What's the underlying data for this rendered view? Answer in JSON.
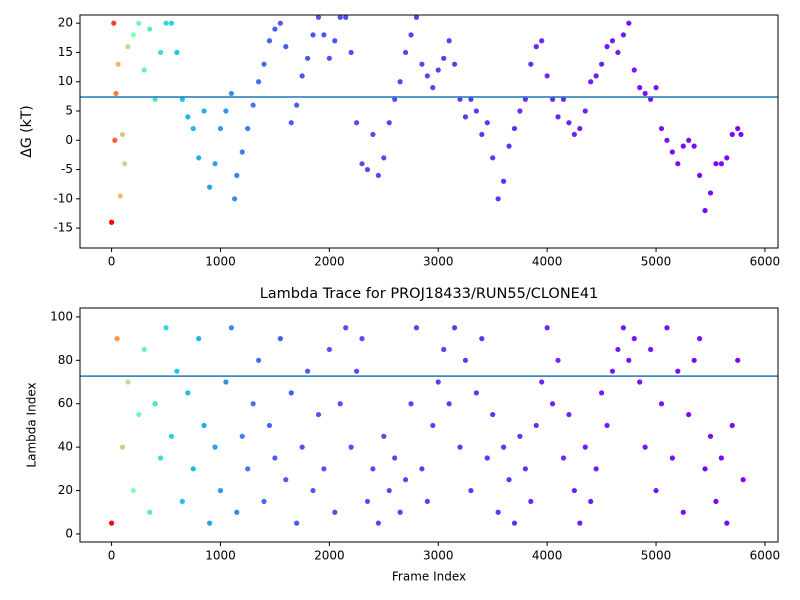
{
  "chart_data": [
    {
      "type": "scatter",
      "ylabel": "ΔG (kT)",
      "x": [
        0,
        20,
        30,
        40,
        60,
        80,
        100,
        120,
        150,
        200,
        250,
        300,
        350,
        400,
        450,
        500,
        550,
        600,
        650,
        700,
        750,
        800,
        850,
        900,
        950,
        1000,
        1050,
        1100,
        1130,
        1150,
        1200,
        1250,
        1300,
        1350,
        1400,
        1450,
        1500,
        1550,
        1600,
        1650,
        1700,
        1750,
        1800,
        1850,
        1900,
        1950,
        2000,
        2050,
        2100,
        2150,
        2200,
        2250,
        2300,
        2350,
        2400,
        2450,
        2500,
        2550,
        2600,
        2650,
        2700,
        2750,
        2800,
        2850,
        2900,
        2950,
        3000,
        3050,
        3100,
        3150,
        3200,
        3250,
        3300,
        3350,
        3400,
        3450,
        3500,
        3550,
        3600,
        3650,
        3700,
        3750,
        3800,
        3850,
        3900,
        3950,
        4000,
        4050,
        4100,
        4150,
        4200,
        4250,
        4300,
        4350,
        4400,
        4450,
        4500,
        4550,
        4600,
        4650,
        4700,
        4750,
        4800,
        4850,
        4900,
        4950,
        5000,
        5050,
        5100,
        5150,
        5200,
        5250,
        5300,
        5350,
        5400,
        5450,
        5500,
        5550,
        5600,
        5650,
        5700,
        5750,
        5780
      ],
      "values": [
        -14,
        20,
        0,
        8,
        13,
        -9.5,
        1,
        -4,
        16,
        18,
        20,
        12,
        19,
        7,
        15,
        20,
        20,
        15,
        7,
        4,
        2,
        -3,
        5,
        -8,
        -4,
        2,
        5,
        8,
        -10,
        -6,
        -2,
        2,
        6,
        10,
        13,
        17,
        19,
        20,
        16,
        3,
        6,
        11,
        14,
        18,
        21,
        18,
        14,
        17,
        21,
        21,
        15,
        3,
        -4,
        -5,
        1,
        -6,
        -3,
        3,
        7,
        10,
        15,
        18,
        21,
        13,
        11,
        9,
        12,
        14,
        17,
        13,
        7,
        4,
        7,
        5,
        1,
        3,
        -3,
        -10,
        -7,
        -1,
        2,
        5,
        7,
        13,
        16,
        17,
        11,
        7,
        4,
        7,
        3,
        1,
        2,
        5,
        10,
        11,
        13,
        16,
        17,
        15,
        18,
        20,
        12,
        9,
        8,
        7,
        9,
        2,
        0,
        -2,
        -4,
        -1,
        0,
        -1,
        -6,
        -12,
        -9,
        -4,
        -4,
        -3,
        1,
        2,
        1
      ],
      "xlim": [
        -290,
        6120
      ],
      "ylim": [
        -18.4,
        21.4
      ],
      "xticks": [
        0,
        1000,
        2000,
        3000,
        4000,
        5000,
        6000
      ],
      "yticks": [
        -15,
        -10,
        -5,
        0,
        5,
        10,
        15,
        20
      ],
      "hline": 7.4,
      "hline_color": "#1f77b4",
      "color_stops": [
        {
          "x": 0,
          "color": "#ff0000"
        },
        {
          "x": 60,
          "color": "#ffb360"
        },
        {
          "x": 200,
          "color": "#80ffb4"
        },
        {
          "x": 600,
          "color": "#1ac7e6"
        },
        {
          "x": 1500,
          "color": "#4a5cf5"
        },
        {
          "x": 5800,
          "color": "#8000ff"
        }
      ]
    },
    {
      "type": "scatter",
      "title": "Lambda Trace for PROJ18433/RUN55/CLONE41",
      "xlabel": "Frame Index",
      "ylabel": "Lambda Index",
      "x": [
        0,
        50,
        100,
        150,
        200,
        250,
        300,
        350,
        400,
        450,
        500,
        550,
        600,
        650,
        700,
        750,
        800,
        850,
        900,
        950,
        1000,
        1050,
        1100,
        1150,
        1200,
        1250,
        1300,
        1350,
        1400,
        1450,
        1500,
        1550,
        1600,
        1650,
        1700,
        1750,
        1800,
        1850,
        1900,
        1950,
        2000,
        2050,
        2100,
        2150,
        2200,
        2250,
        2300,
        2350,
        2400,
        2450,
        2500,
        2550,
        2600,
        2650,
        2700,
        2750,
        2800,
        2850,
        2900,
        2950,
        3000,
        3050,
        3100,
        3150,
        3200,
        3250,
        3300,
        3350,
        3400,
        3450,
        3500,
        3550,
        3600,
        3650,
        3700,
        3750,
        3800,
        3850,
        3900,
        3950,
        4000,
        4050,
        4100,
        4150,
        4200,
        4250,
        4300,
        4350,
        4400,
        4450,
        4500,
        4550,
        4600,
        4650,
        4700,
        4750,
        4800,
        4850,
        4900,
        4950,
        5000,
        5050,
        5100,
        5150,
        5200,
        5250,
        5300,
        5350,
        5400,
        5450,
        5500,
        5550,
        5600,
        5650,
        5700,
        5750,
        5800
      ],
      "values": [
        5,
        90,
        40,
        70,
        20,
        55,
        85,
        10,
        60,
        35,
        95,
        45,
        75,
        15,
        65,
        30,
        90,
        50,
        5,
        40,
        20,
        70,
        95,
        10,
        45,
        30,
        60,
        80,
        15,
        50,
        35,
        90,
        25,
        65,
        5,
        40,
        75,
        20,
        55,
        30,
        85,
        10,
        60,
        95,
        40,
        75,
        90,
        15,
        30,
        5,
        45,
        20,
        35,
        10,
        25,
        60,
        95,
        30,
        15,
        50,
        70,
        85,
        60,
        95,
        40,
        80,
        20,
        65,
        90,
        35,
        55,
        10,
        40,
        25,
        5,
        45,
        30,
        15,
        50,
        70,
        95,
        60,
        80,
        35,
        55,
        20,
        5,
        40,
        15,
        30,
        65,
        50,
        75,
        85,
        95,
        80,
        90,
        70,
        40,
        85,
        20,
        60,
        95,
        35,
        75,
        10,
        55,
        80,
        90,
        30,
        45,
        15,
        35,
        5,
        50,
        80,
        25
      ],
      "xlim": [
        -290,
        6120
      ],
      "ylim": [
        -3.7,
        104.1
      ],
      "xticks": [
        0,
        1000,
        2000,
        3000,
        4000,
        5000,
        6000
      ],
      "yticks": [
        0,
        20,
        40,
        60,
        80,
        100
      ],
      "hline": 72.7,
      "hline_color": "#1f77b4",
      "color_stops": [
        {
          "x": 0,
          "color": "#ff0000"
        },
        {
          "x": 60,
          "color": "#ffb360"
        },
        {
          "x": 200,
          "color": "#80ffb4"
        },
        {
          "x": 600,
          "color": "#1ac7e6"
        },
        {
          "x": 1500,
          "color": "#4a5cf5"
        },
        {
          "x": 5800,
          "color": "#8000ff"
        }
      ]
    }
  ]
}
